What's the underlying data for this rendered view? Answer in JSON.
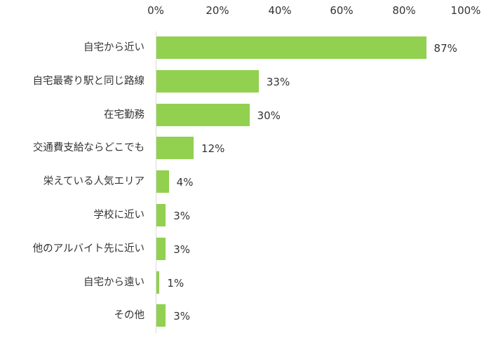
{
  "chart_data": {
    "type": "bar",
    "orientation": "horizontal",
    "title": "",
    "xlabel": "",
    "ylabel": "",
    "xlim": [
      0,
      100
    ],
    "x_ticks": [
      "0%",
      "20%",
      "40%",
      "60%",
      "80%",
      "100%"
    ],
    "x_tick_position": "top",
    "grid": false,
    "legend": null,
    "bar_color": "#92d050",
    "categories": [
      "自宅から近い",
      "自宅最寄り駅と同じ路線",
      "在宅勤務",
      "交通費支給ならどこでも",
      "栄えている人気エリア",
      "学校に近い",
      "他のアルバイト先に近い",
      "自宅から遠い",
      "その他"
    ],
    "values": [
      87,
      33,
      30,
      12,
      4,
      3,
      3,
      1,
      3
    ],
    "value_labels": [
      "87%",
      "33%",
      "30%",
      "12%",
      "4%",
      "3%",
      "3%",
      "1%",
      "3%"
    ]
  }
}
